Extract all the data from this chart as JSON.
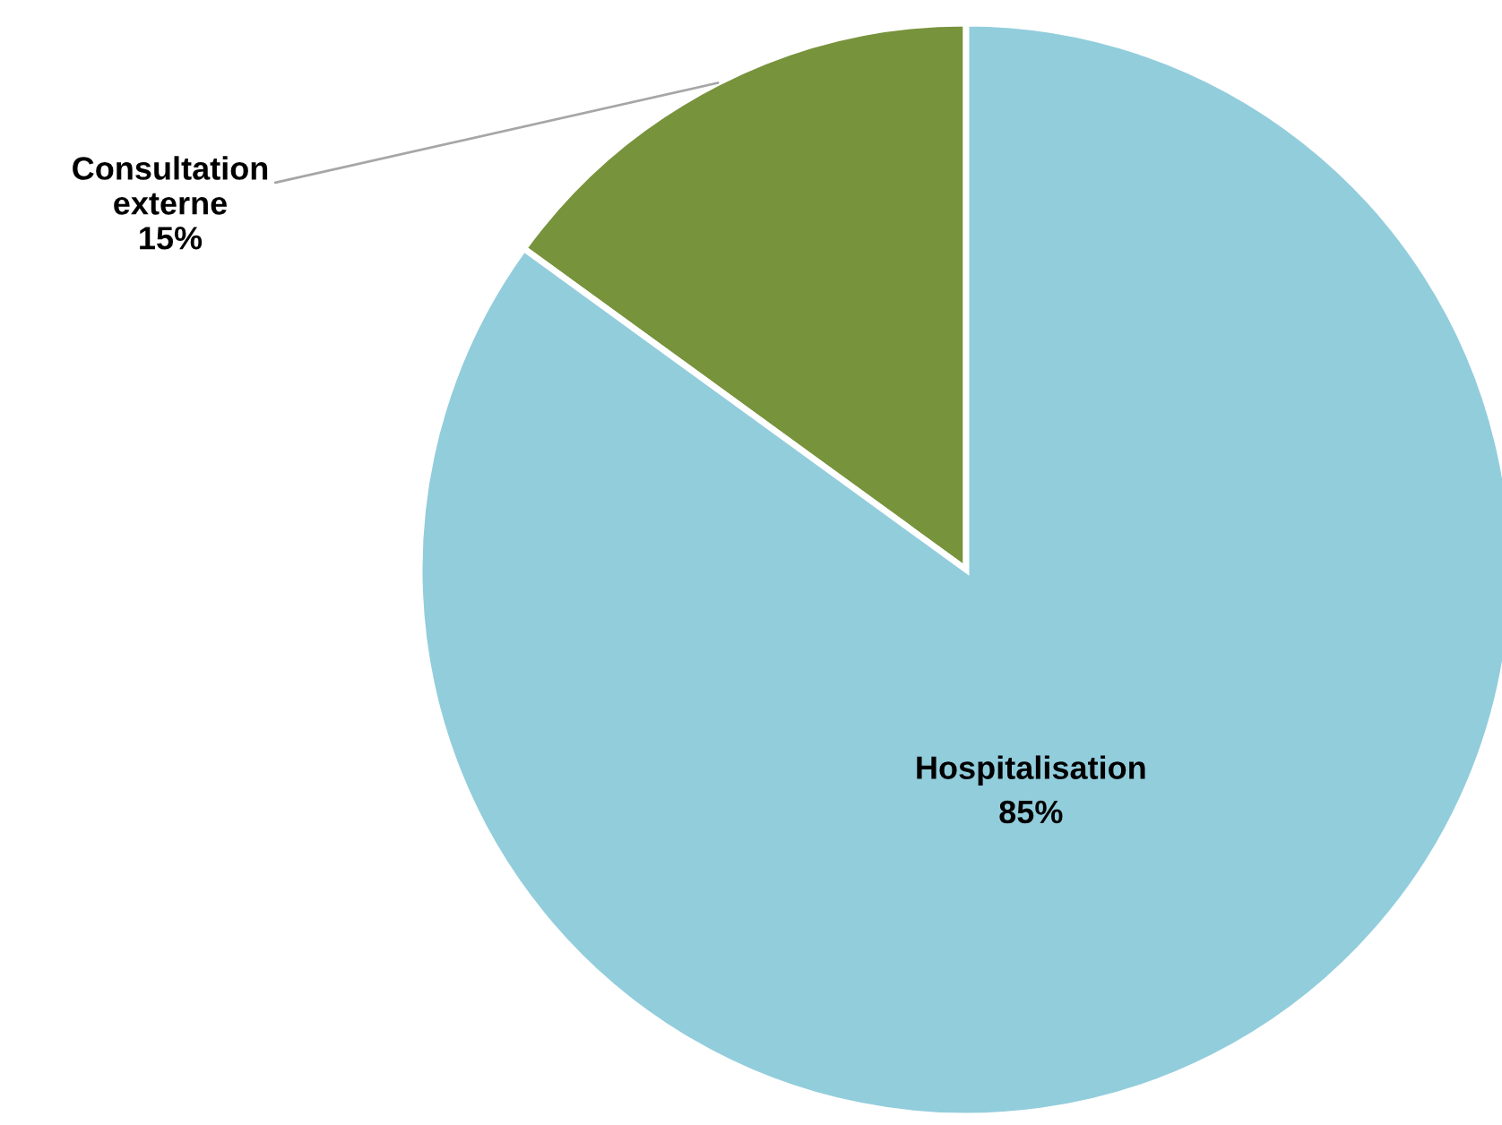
{
  "chart_data": {
    "type": "pie",
    "categories": [
      "Consultation externe",
      "Hospitalisation"
    ],
    "values": [
      15,
      85
    ],
    "colors": [
      "#77933c",
      "#92cddc"
    ],
    "value_labels": [
      "15%",
      "85%"
    ],
    "legend": false
  }
}
